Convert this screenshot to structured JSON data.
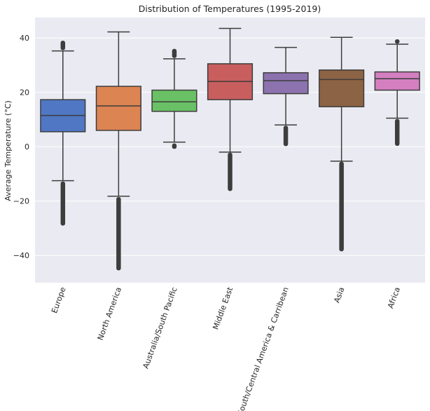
{
  "chart_data": {
    "type": "box",
    "title": "Distribution of Temperatures (1995-2019)",
    "xlabel": "",
    "ylabel": "Average Temperature (°C)",
    "ylim": [
      -50,
      47.5
    ],
    "yticks": [
      -40,
      -20,
      0,
      20,
      40
    ],
    "grid": true,
    "background": "#eaeaf2",
    "categories": [
      {
        "name": "Europe",
        "color": "#5077c4",
        "whisker_low": -12.5,
        "q1": 5.5,
        "median": 11.5,
        "q3": 17.3,
        "whisker_high": 35.2,
        "outliers_low": [
          -29.0,
          -12.8
        ],
        "outliers_high": [
          35.5,
          39.0
        ]
      },
      {
        "name": "North America",
        "color": "#dc8452",
        "whisker_low": -18.2,
        "q1": 6.0,
        "median": 15.0,
        "q3": 22.2,
        "whisker_high": 42.2,
        "outliers_low": [
          -45.5,
          -18.5
        ],
        "outliers_high": []
      },
      {
        "name": "Australia/South Pacific",
        "color": "#6ac064",
        "whisker_low": 1.7,
        "q1": 13.0,
        "median": 16.5,
        "q3": 20.8,
        "whisker_high": 32.3,
        "outliers_low": [
          -0.8,
          1.2
        ],
        "outliers_high": [
          32.6,
          36.0
        ]
      },
      {
        "name": "Middle East",
        "color": "#c95e5e",
        "whisker_low": -2.0,
        "q1": 17.3,
        "median": 24.0,
        "q3": 30.5,
        "whisker_high": 43.5,
        "outliers_low": [
          -16.3,
          -2.2
        ],
        "outliers_high": []
      },
      {
        "name": "South/Central America & Carribean",
        "color": "#8c72af",
        "whisker_low": 8.0,
        "q1": 19.5,
        "median": 24.3,
        "q3": 27.2,
        "whisker_high": 36.5,
        "outliers_low": [
          0.2,
          7.7
        ],
        "outliers_high": []
      },
      {
        "name": "Asia",
        "color": "#8c6344",
        "whisker_low": -5.3,
        "q1": 14.7,
        "median": 24.7,
        "q3": 28.2,
        "whisker_high": 40.2,
        "outliers_low": [
          -38.5,
          -5.5
        ],
        "outliers_high": []
      },
      {
        "name": "Africa",
        "color": "#d47fc0",
        "whisker_low": 10.5,
        "q1": 20.8,
        "median": 25.0,
        "q3": 27.5,
        "whisker_high": 37.7,
        "outliers_low": [
          0.3,
          10.2
        ],
        "outliers_high": [
          37.9,
          39.5
        ]
      }
    ]
  }
}
